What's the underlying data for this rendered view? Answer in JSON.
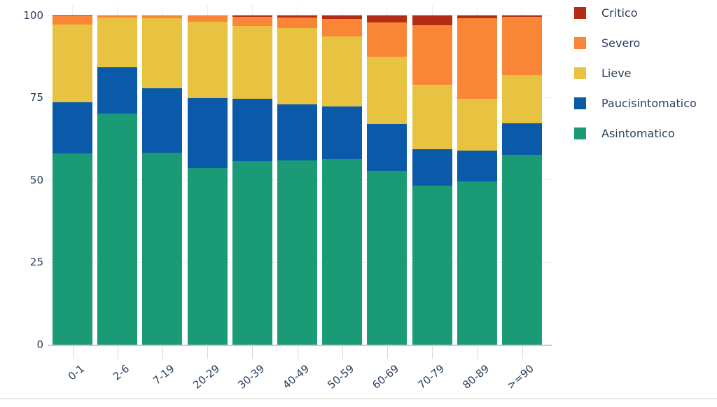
{
  "chart_data": {
    "type": "bar",
    "stacked": true,
    "percent": true,
    "title": "",
    "xlabel": "",
    "ylabel": "",
    "categories": [
      "0-1",
      "2-6",
      "7-19",
      "20-29",
      "30-39",
      "40-49",
      "50-59",
      "60-69",
      "70-79",
      "80-89",
      ">=90"
    ],
    "series": [
      {
        "name": "Asintomatico",
        "color": "#1a9b76",
        "values": [
          58.0,
          70.1,
          58.3,
          53.6,
          55.7,
          55.9,
          56.3,
          52.7,
          48.2,
          49.5,
          57.6
        ]
      },
      {
        "name": "Paucisintomatico",
        "color": "#0a5aa9",
        "values": [
          15.6,
          14.1,
          19.5,
          21.3,
          18.9,
          17.0,
          15.9,
          14.2,
          11.1,
          9.4,
          9.6
        ]
      },
      {
        "name": "Lieve",
        "color": "#e8c342",
        "values": [
          23.5,
          15.0,
          21.2,
          23.1,
          22.1,
          23.1,
          21.4,
          20.4,
          19.5,
          15.8,
          14.6
        ]
      },
      {
        "name": "Severo",
        "color": "#f98636",
        "values": [
          2.5,
          0.8,
          1.0,
          2.0,
          2.8,
          3.3,
          5.2,
          10.4,
          18.1,
          24.3,
          17.7
        ]
      },
      {
        "name": "Critico",
        "color": "#b22d14",
        "values": [
          0.4,
          0.0,
          0.0,
          0.0,
          0.5,
          0.7,
          1.2,
          2.3,
          3.1,
          1.0,
          0.5
        ]
      }
    ],
    "ylim": [
      0,
      100
    ],
    "yticks": [
      0,
      25,
      50,
      75,
      100
    ],
    "grid": true,
    "legend_position": "right",
    "legend_order": [
      "Critico",
      "Severo",
      "Lieve",
      "Paucisintomatico",
      "Asintomatico"
    ],
    "text_color": "#2a3f5f"
  }
}
